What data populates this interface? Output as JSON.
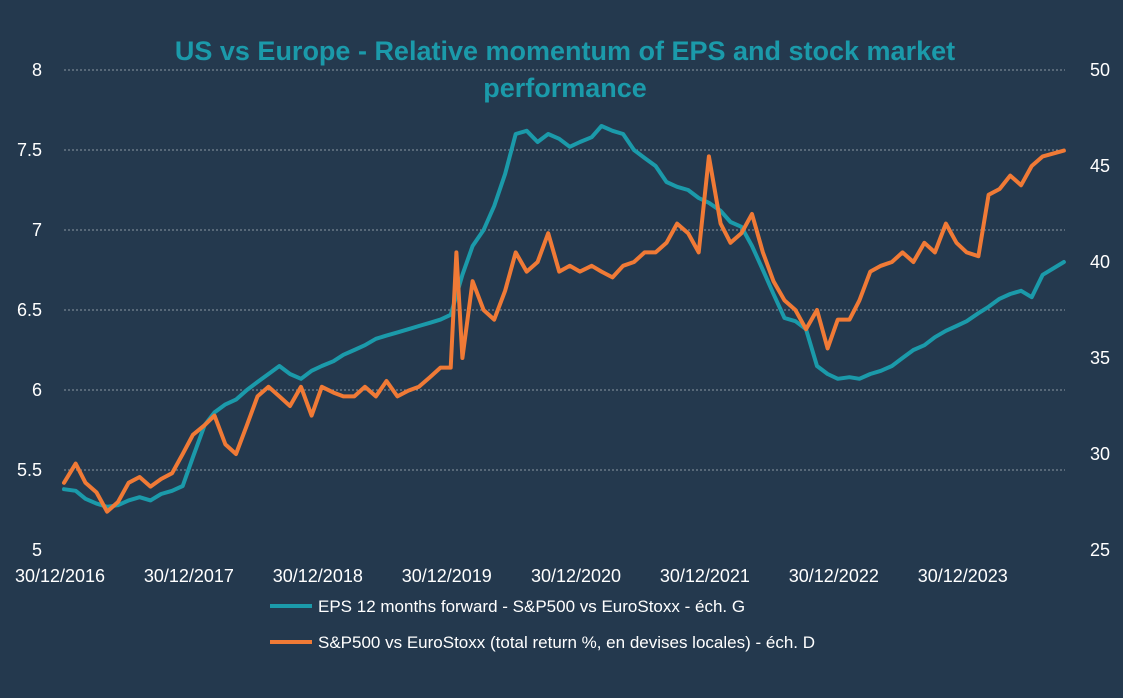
{
  "chart_data": {
    "type": "line",
    "title": "US vs Europe - Relative momentum of EPS and stock market performance",
    "title_lines": [
      "US vs Europe - Relative momentum of EPS and stock market",
      "performance"
    ],
    "x_labels": [
      "30/12/2016",
      "30/12/2017",
      "30/12/2018",
      "30/12/2019",
      "30/12/2020",
      "30/12/2021",
      "30/12/2022",
      "30/12/2023"
    ],
    "xlim": [
      "2016-12-30",
      "2024-09-30"
    ],
    "y_left": {
      "ticks": [
        "5",
        "5.5",
        "6",
        "6.5",
        "7",
        "7.5",
        "8"
      ],
      "ylim": [
        5,
        8
      ]
    },
    "y_right": {
      "ticks": [
        "25",
        "30",
        "35",
        "40",
        "45",
        "50"
      ],
      "ylim": [
        25,
        50
      ]
    },
    "grid": true,
    "legend_position": "bottom",
    "series": [
      {
        "name": "EPS 12 months forward - S&P500 vs EuroStoxx - éch. G",
        "axis": "left",
        "color": "#1b9aaa",
        "points": [
          [
            "2016-12-30",
            5.38
          ],
          [
            "2017-02-01",
            5.37
          ],
          [
            "2017-03-01",
            5.32
          ],
          [
            "2017-04-01",
            5.29
          ],
          [
            "2017-05-01",
            5.27
          ],
          [
            "2017-06-01",
            5.28
          ],
          [
            "2017-07-01",
            5.31
          ],
          [
            "2017-08-01",
            5.33
          ],
          [
            "2017-09-01",
            5.31
          ],
          [
            "2017-10-01",
            5.35
          ],
          [
            "2017-11-01",
            5.37
          ],
          [
            "2017-12-01",
            5.4
          ],
          [
            "2017-12-30",
            5.58
          ],
          [
            "2018-02-01",
            5.78
          ],
          [
            "2018-03-01",
            5.86
          ],
          [
            "2018-04-01",
            5.91
          ],
          [
            "2018-05-01",
            5.94
          ],
          [
            "2018-06-01",
            6.0
          ],
          [
            "2018-07-01",
            6.05
          ],
          [
            "2018-08-01",
            6.1
          ],
          [
            "2018-09-01",
            6.15
          ],
          [
            "2018-10-01",
            6.1
          ],
          [
            "2018-11-01",
            6.07
          ],
          [
            "2018-12-01",
            6.12
          ],
          [
            "2018-12-30",
            6.15
          ],
          [
            "2019-02-01",
            6.18
          ],
          [
            "2019-03-01",
            6.22
          ],
          [
            "2019-04-01",
            6.25
          ],
          [
            "2019-05-01",
            6.28
          ],
          [
            "2019-06-01",
            6.32
          ],
          [
            "2019-07-01",
            6.34
          ],
          [
            "2019-08-01",
            6.36
          ],
          [
            "2019-09-01",
            6.38
          ],
          [
            "2019-10-01",
            6.4
          ],
          [
            "2019-11-01",
            6.42
          ],
          [
            "2019-12-01",
            6.44
          ],
          [
            "2019-12-30",
            6.47
          ],
          [
            "2020-02-01",
            6.72
          ],
          [
            "2020-03-01",
            6.9
          ],
          [
            "2020-04-01",
            7.0
          ],
          [
            "2020-05-01",
            7.15
          ],
          [
            "2020-06-01",
            7.35
          ],
          [
            "2020-07-01",
            7.6
          ],
          [
            "2020-08-01",
            7.62
          ],
          [
            "2020-09-01",
            7.55
          ],
          [
            "2020-10-01",
            7.6
          ],
          [
            "2020-11-01",
            7.57
          ],
          [
            "2020-12-01",
            7.52
          ],
          [
            "2020-12-30",
            7.55
          ],
          [
            "2021-02-01",
            7.58
          ],
          [
            "2021-03-01",
            7.65
          ],
          [
            "2021-04-01",
            7.62
          ],
          [
            "2021-05-01",
            7.6
          ],
          [
            "2021-06-01",
            7.5
          ],
          [
            "2021-07-01",
            7.45
          ],
          [
            "2021-08-01",
            7.4
          ],
          [
            "2021-09-01",
            7.3
          ],
          [
            "2021-10-01",
            7.27
          ],
          [
            "2021-11-01",
            7.25
          ],
          [
            "2021-12-01",
            7.2
          ],
          [
            "2021-12-30",
            7.17
          ],
          [
            "2022-02-01",
            7.12
          ],
          [
            "2022-03-01",
            7.05
          ],
          [
            "2022-04-01",
            7.02
          ],
          [
            "2022-05-01",
            6.9
          ],
          [
            "2022-06-01",
            6.75
          ],
          [
            "2022-07-01",
            6.6
          ],
          [
            "2022-08-01",
            6.45
          ],
          [
            "2022-09-01",
            6.43
          ],
          [
            "2022-10-01",
            6.38
          ],
          [
            "2022-11-01",
            6.15
          ],
          [
            "2022-12-01",
            6.1
          ],
          [
            "2022-12-30",
            6.07
          ],
          [
            "2023-02-01",
            6.08
          ],
          [
            "2023-03-01",
            6.07
          ],
          [
            "2023-04-01",
            6.1
          ],
          [
            "2023-05-01",
            6.12
          ],
          [
            "2023-06-01",
            6.15
          ],
          [
            "2023-07-01",
            6.2
          ],
          [
            "2023-08-01",
            6.25
          ],
          [
            "2023-09-01",
            6.28
          ],
          [
            "2023-10-01",
            6.33
          ],
          [
            "2023-11-01",
            6.37
          ],
          [
            "2023-12-01",
            6.4
          ],
          [
            "2023-12-30",
            6.43
          ],
          [
            "2024-02-01",
            6.48
          ],
          [
            "2024-03-01",
            6.52
          ],
          [
            "2024-04-01",
            6.57
          ],
          [
            "2024-05-01",
            6.6
          ],
          [
            "2024-06-01",
            6.62
          ],
          [
            "2024-07-01",
            6.58
          ],
          [
            "2024-08-01",
            6.72
          ],
          [
            "2024-09-30",
            6.8
          ]
        ]
      },
      {
        "name": "S&P500 vs EuroStoxx (total return %, en devises locales) - éch. D",
        "axis": "right",
        "color": "#f07a36",
        "points": [
          [
            "2016-12-30",
            28.5
          ],
          [
            "2017-02-01",
            29.5
          ],
          [
            "2017-03-01",
            28.5
          ],
          [
            "2017-04-01",
            28.0
          ],
          [
            "2017-05-01",
            27.0
          ],
          [
            "2017-06-01",
            27.5
          ],
          [
            "2017-07-01",
            28.5
          ],
          [
            "2017-08-01",
            28.8
          ],
          [
            "2017-09-01",
            28.3
          ],
          [
            "2017-10-01",
            28.7
          ],
          [
            "2017-11-01",
            29.0
          ],
          [
            "2017-12-01",
            30.0
          ],
          [
            "2017-12-30",
            31.0
          ],
          [
            "2018-02-01",
            31.5
          ],
          [
            "2018-03-01",
            32.0
          ],
          [
            "2018-04-01",
            30.5
          ],
          [
            "2018-05-01",
            30.0
          ],
          [
            "2018-06-01",
            31.5
          ],
          [
            "2018-07-01",
            33.0
          ],
          [
            "2018-08-01",
            33.5
          ],
          [
            "2018-09-01",
            33.0
          ],
          [
            "2018-10-01",
            32.5
          ],
          [
            "2018-11-01",
            33.5
          ],
          [
            "2018-12-01",
            32.0
          ],
          [
            "2018-12-30",
            33.5
          ],
          [
            "2019-02-01",
            33.2
          ],
          [
            "2019-03-01",
            33.0
          ],
          [
            "2019-04-01",
            33.0
          ],
          [
            "2019-05-01",
            33.5
          ],
          [
            "2019-06-01",
            33.0
          ],
          [
            "2019-07-01",
            33.8
          ],
          [
            "2019-08-01",
            33.0
          ],
          [
            "2019-09-01",
            33.3
          ],
          [
            "2019-10-01",
            33.5
          ],
          [
            "2019-11-01",
            34.0
          ],
          [
            "2019-12-01",
            34.5
          ],
          [
            "2019-12-30",
            34.5
          ],
          [
            "2020-01-15",
            40.5
          ],
          [
            "2020-02-01",
            35.0
          ],
          [
            "2020-03-01",
            39.0
          ],
          [
            "2020-04-01",
            37.5
          ],
          [
            "2020-05-01",
            37.0
          ],
          [
            "2020-06-01",
            38.5
          ],
          [
            "2020-07-01",
            40.5
          ],
          [
            "2020-08-01",
            39.5
          ],
          [
            "2020-09-01",
            40.0
          ],
          [
            "2020-10-01",
            41.5
          ],
          [
            "2020-11-01",
            39.5
          ],
          [
            "2020-12-01",
            39.8
          ],
          [
            "2020-12-30",
            39.5
          ],
          [
            "2021-02-01",
            39.8
          ],
          [
            "2021-03-01",
            39.5
          ],
          [
            "2021-04-01",
            39.2
          ],
          [
            "2021-05-01",
            39.8
          ],
          [
            "2021-06-01",
            40.0
          ],
          [
            "2021-07-01",
            40.5
          ],
          [
            "2021-08-01",
            40.5
          ],
          [
            "2021-09-01",
            41.0
          ],
          [
            "2021-10-01",
            42.0
          ],
          [
            "2021-11-01",
            41.5
          ],
          [
            "2021-12-01",
            40.5
          ],
          [
            "2021-12-30",
            45.5
          ],
          [
            "2022-02-01",
            42.0
          ],
          [
            "2022-03-01",
            41.0
          ],
          [
            "2022-04-01",
            41.5
          ],
          [
            "2022-05-01",
            42.5
          ],
          [
            "2022-06-01",
            40.5
          ],
          [
            "2022-07-01",
            39.0
          ],
          [
            "2022-08-01",
            38.0
          ],
          [
            "2022-09-01",
            37.5
          ],
          [
            "2022-10-01",
            36.5
          ],
          [
            "2022-11-01",
            37.5
          ],
          [
            "2022-12-01",
            35.5
          ],
          [
            "2022-12-30",
            37.0
          ],
          [
            "2023-02-01",
            37.0
          ],
          [
            "2023-03-01",
            38.0
          ],
          [
            "2023-04-01",
            39.5
          ],
          [
            "2023-05-01",
            39.8
          ],
          [
            "2023-06-01",
            40.0
          ],
          [
            "2023-07-01",
            40.5
          ],
          [
            "2023-08-01",
            40.0
          ],
          [
            "2023-09-01",
            41.0
          ],
          [
            "2023-10-01",
            40.5
          ],
          [
            "2023-11-01",
            42.0
          ],
          [
            "2023-12-01",
            41.0
          ],
          [
            "2023-12-30",
            40.5
          ],
          [
            "2024-02-01",
            40.3
          ],
          [
            "2024-03-01",
            43.5
          ],
          [
            "2024-04-01",
            43.8
          ],
          [
            "2024-05-01",
            44.5
          ],
          [
            "2024-06-01",
            44.0
          ],
          [
            "2024-07-01",
            45.0
          ],
          [
            "2024-08-01",
            45.5
          ],
          [
            "2024-09-30",
            45.8
          ]
        ]
      }
    ]
  }
}
